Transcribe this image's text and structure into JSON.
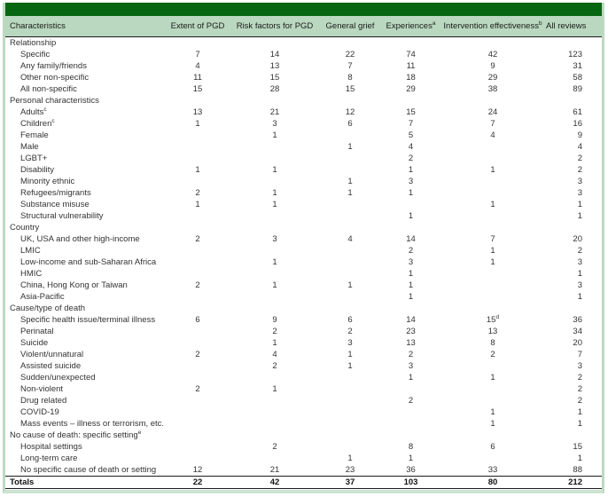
{
  "table": {
    "columns": [
      {
        "label": "Characteristics",
        "sup": "",
        "align": "left"
      },
      {
        "label": "Extent of PGD",
        "sup": "",
        "align": "center"
      },
      {
        "label": "Risk factors for PGD",
        "sup": "",
        "align": "center"
      },
      {
        "label": "General grief",
        "sup": "",
        "align": "center"
      },
      {
        "label": "Experiences",
        "sup": "a",
        "align": "center"
      },
      {
        "label": "Intervention effectiveness",
        "sup": "b",
        "align": "center"
      },
      {
        "label": "All reviews",
        "sup": "",
        "align": "right"
      }
    ],
    "rows": [
      {
        "label": "Relationship",
        "sup": "",
        "type": "section",
        "values": [
          "",
          "",
          "",
          "",
          "",
          ""
        ]
      },
      {
        "label": "Specific",
        "sup": "",
        "type": "data",
        "values": [
          "7",
          "14",
          "22",
          "74",
          "42",
          "123"
        ]
      },
      {
        "label": "Any family/friends",
        "sup": "",
        "type": "data",
        "values": [
          "4",
          "13",
          "7",
          "11",
          "9",
          "31"
        ]
      },
      {
        "label": "Other non-specific",
        "sup": "",
        "type": "data",
        "values": [
          "11",
          "15",
          "8",
          "18",
          "29",
          "58"
        ]
      },
      {
        "label": "All non-specific",
        "sup": "",
        "type": "data",
        "values": [
          "15",
          "28",
          "15",
          "29",
          "38",
          "89"
        ]
      },
      {
        "label": "Personal characteristics",
        "sup": "",
        "type": "section",
        "values": [
          "",
          "",
          "",
          "",
          "",
          ""
        ]
      },
      {
        "label": "Adults",
        "sup": "c",
        "type": "data",
        "values": [
          "13",
          "21",
          "12",
          "15",
          "24",
          "61"
        ]
      },
      {
        "label": "Children",
        "sup": "c",
        "type": "data",
        "values": [
          "1",
          "3",
          "6",
          "7",
          "7",
          "16"
        ]
      },
      {
        "label": "Female",
        "sup": "",
        "type": "data",
        "values": [
          "",
          "1",
          "",
          "5",
          "4",
          "9"
        ]
      },
      {
        "label": "Male",
        "sup": "",
        "type": "data",
        "values": [
          "",
          "",
          "1",
          "4",
          "",
          "4"
        ]
      },
      {
        "label": "LGBT+",
        "sup": "",
        "type": "data",
        "values": [
          "",
          "",
          "",
          "2",
          "",
          "2"
        ]
      },
      {
        "label": "Disability",
        "sup": "",
        "type": "data",
        "values": [
          "1",
          "1",
          "",
          "1",
          "1",
          "2"
        ]
      },
      {
        "label": "Minority ethnic",
        "sup": "",
        "type": "data",
        "values": [
          "",
          "",
          "1",
          "3",
          "",
          "3"
        ]
      },
      {
        "label": "Refugees/migrants",
        "sup": "",
        "type": "data",
        "values": [
          "2",
          "1",
          "1",
          "1",
          "",
          "3"
        ]
      },
      {
        "label": "Substance misuse",
        "sup": "",
        "type": "data",
        "values": [
          "1",
          "1",
          "",
          "",
          "1",
          "1"
        ]
      },
      {
        "label": "Structural vulnerability",
        "sup": "",
        "type": "data",
        "values": [
          "",
          "",
          "",
          "1",
          "",
          "1"
        ]
      },
      {
        "label": "Country",
        "sup": "",
        "type": "section",
        "values": [
          "",
          "",
          "",
          "",
          "",
          ""
        ]
      },
      {
        "label": "UK, USA and other high-income",
        "sup": "",
        "type": "data",
        "values": [
          "2",
          "3",
          "4",
          "14",
          "7",
          "20"
        ]
      },
      {
        "label": "LMIC",
        "sup": "",
        "type": "data",
        "values": [
          "",
          "",
          "",
          "2",
          "1",
          "2"
        ]
      },
      {
        "label": "Low-income and sub-Saharan Africa",
        "sup": "",
        "type": "data",
        "values": [
          "",
          "1",
          "",
          "3",
          "1",
          "3"
        ]
      },
      {
        "label": "HMIC",
        "sup": "",
        "type": "data",
        "values": [
          "",
          "",
          "",
          "1",
          "",
          "1"
        ]
      },
      {
        "label": "China, Hong Kong or Taiwan",
        "sup": "",
        "type": "data",
        "values": [
          "2",
          "1",
          "1",
          "1",
          "",
          "3"
        ]
      },
      {
        "label": "Asia-Pacific",
        "sup": "",
        "type": "data",
        "values": [
          "",
          "",
          "",
          "1",
          "",
          "1"
        ]
      },
      {
        "label": "Cause/type of death",
        "sup": "",
        "type": "section",
        "values": [
          "",
          "",
          "",
          "",
          "",
          ""
        ]
      },
      {
        "label": "Specific health issue/terminal illness",
        "sup": "",
        "type": "data",
        "values": [
          "6",
          "9",
          "6",
          "14",
          {
            "v": "15",
            "sup": "d"
          },
          "36"
        ]
      },
      {
        "label": "Perinatal",
        "sup": "",
        "type": "data",
        "values": [
          "",
          "2",
          "2",
          "23",
          "13",
          "34"
        ]
      },
      {
        "label": "Suicide",
        "sup": "",
        "type": "data",
        "values": [
          "",
          "1",
          "3",
          "13",
          "8",
          "20"
        ]
      },
      {
        "label": "Violent/unnatural",
        "sup": "",
        "type": "data",
        "values": [
          "2",
          "4",
          "1",
          "2",
          "2",
          "7"
        ]
      },
      {
        "label": "Assisted suicide",
        "sup": "",
        "type": "data",
        "values": [
          "",
          "2",
          "1",
          "3",
          "",
          "3"
        ]
      },
      {
        "label": "Sudden/unexpected",
        "sup": "",
        "type": "data",
        "values": [
          "",
          "",
          "",
          "1",
          "1",
          "2"
        ]
      },
      {
        "label": "Non-violent",
        "sup": "",
        "type": "data",
        "values": [
          "2",
          "1",
          "",
          "",
          "",
          "2"
        ]
      },
      {
        "label": "Drug related",
        "sup": "",
        "type": "data",
        "values": [
          "",
          "",
          "",
          "2",
          "",
          "2"
        ]
      },
      {
        "label": "COVID-19",
        "sup": "",
        "type": "data",
        "values": [
          "",
          "",
          "",
          "",
          "1",
          "1"
        ]
      },
      {
        "label": "Mass events – illness or terrorism, etc.",
        "sup": "",
        "type": "data",
        "values": [
          "",
          "",
          "",
          "",
          "1",
          "1"
        ]
      },
      {
        "label": "No cause of death: specific setting",
        "sup": "e",
        "type": "section",
        "values": [
          "",
          "",
          "",
          "",
          "",
          ""
        ]
      },
      {
        "label": "Hospital settings",
        "sup": "",
        "type": "data",
        "values": [
          "",
          "2",
          "",
          "8",
          "6",
          "15"
        ]
      },
      {
        "label": "Long-term care",
        "sup": "",
        "type": "data",
        "values": [
          "",
          "",
          "1",
          "1",
          "",
          "1"
        ]
      },
      {
        "label": "No specific cause of death or setting",
        "sup": "",
        "type": "data",
        "values": [
          "12",
          "21",
          "23",
          "36",
          "33",
          "88"
        ]
      },
      {
        "label": "Totals",
        "sup": "",
        "type": "total",
        "values": [
          "22",
          "42",
          "37",
          "103",
          "80",
          "212"
        ]
      }
    ],
    "colors": {
      "title_band": "#076612",
      "header_bg": "#b9d8bf",
      "frame": "#bcd9c1",
      "rule": "#1c1c1c"
    }
  }
}
